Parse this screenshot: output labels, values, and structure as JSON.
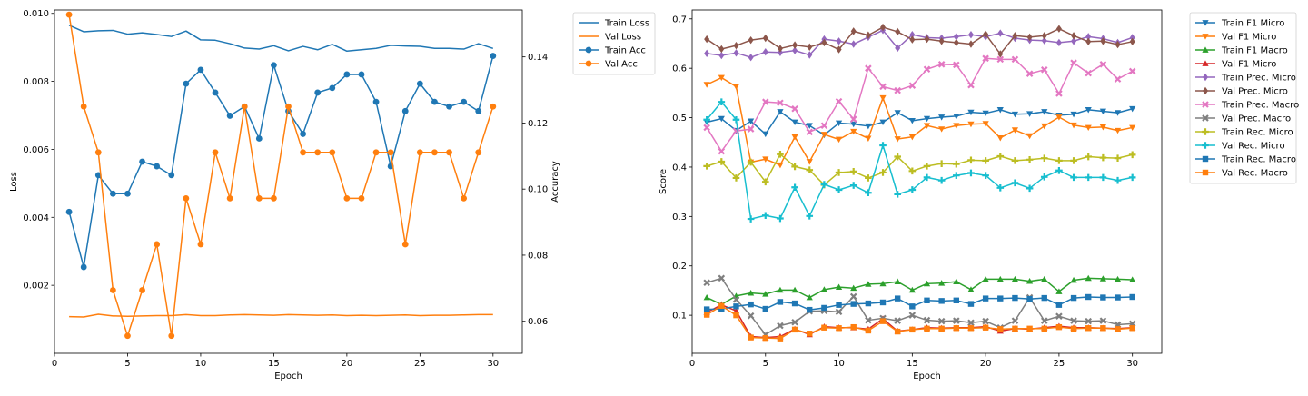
{
  "chart_data": [
    {
      "type": "line",
      "xlabel": "Epoch",
      "ylabel": "Loss",
      "y2label": "Accuracy",
      "x": [
        1,
        2,
        3,
        4,
        5,
        6,
        7,
        8,
        9,
        10,
        11,
        12,
        13,
        14,
        15,
        16,
        17,
        18,
        19,
        20,
        21,
        22,
        23,
        24,
        25,
        26,
        27,
        28,
        29,
        30
      ],
      "xticks": [
        "0",
        "5",
        "10",
        "15",
        "20",
        "25",
        "30"
      ],
      "ylim": [
        0.0,
        0.0101
      ],
      "yticks": [
        "0.002",
        "0.004",
        "0.006",
        "0.008",
        "0.010"
      ],
      "y2lim": [
        0.0503,
        0.1542
      ],
      "y2ticks": [
        "0.06",
        "0.08",
        "0.10",
        "0.12",
        "0.14"
      ],
      "legend_position": "outside-top-right",
      "series": [
        {
          "name": "Train Loss",
          "axis": "left",
          "color": "#1f77b4",
          "marker": "none",
          "values": [
            0.00965,
            0.00946,
            0.00949,
            0.0095,
            0.00939,
            0.00943,
            0.00938,
            0.00932,
            0.00948,
            0.00922,
            0.00921,
            0.00911,
            0.00898,
            0.00895,
            0.00905,
            0.0089,
            0.00903,
            0.00893,
            0.00909,
            0.00889,
            0.00893,
            0.00897,
            0.00906,
            0.00904,
            0.00903,
            0.00897,
            0.00897,
            0.00895,
            0.00911,
            0.00897
          ]
        },
        {
          "name": "Val Loss",
          "axis": "left",
          "color": "#ff7f0e",
          "marker": "none",
          "values": [
            0.00108,
            0.00107,
            0.00115,
            0.0011,
            0.00109,
            0.0011,
            0.00111,
            0.00111,
            0.00114,
            0.00111,
            0.00111,
            0.00113,
            0.00114,
            0.00113,
            0.00112,
            0.00114,
            0.00113,
            0.00112,
            0.00113,
            0.00111,
            0.00112,
            0.00111,
            0.00112,
            0.00113,
            0.00111,
            0.00112,
            0.00112,
            0.00113,
            0.00114,
            0.00114
          ]
        },
        {
          "name": "Train Acc",
          "axis": "right",
          "color": "#1f77b4",
          "marker": "circle",
          "values": [
            0.0931,
            0.0764,
            0.1042,
            0.0986,
            0.0986,
            0.1083,
            0.1069,
            0.1042,
            0.1319,
            0.1361,
            0.1292,
            0.1222,
            0.125,
            0.1153,
            0.1375,
            0.1236,
            0.1167,
            0.1292,
            0.1306,
            0.1347,
            0.1347,
            0.1264,
            0.1069,
            0.1236,
            0.1319,
            0.1264,
            0.125,
            0.1264,
            0.1236,
            0.1403
          ]
        },
        {
          "name": "Val Acc",
          "axis": "right",
          "color": "#ff7f0e",
          "marker": "circle",
          "values": [
            0.1528,
            0.125,
            0.1111,
            0.0694,
            0.0556,
            0.0694,
            0.0833,
            0.0556,
            0.0972,
            0.0833,
            0.1111,
            0.0972,
            0.125,
            0.0972,
            0.0972,
            0.125,
            0.1111,
            0.1111,
            0.1111,
            0.0972,
            0.0972,
            0.1111,
            0.1111,
            0.0833,
            0.1111,
            0.1111,
            0.1111,
            0.0972,
            0.1111,
            0.125
          ]
        }
      ]
    },
    {
      "type": "line",
      "xlabel": "Epoch",
      "ylabel": "Score",
      "x": [
        1,
        2,
        3,
        4,
        5,
        6,
        7,
        8,
        9,
        10,
        11,
        12,
        13,
        14,
        15,
        16,
        17,
        18,
        19,
        20,
        21,
        22,
        23,
        24,
        25,
        26,
        27,
        28,
        29,
        30
      ],
      "xticks": [
        "0",
        "5",
        "10",
        "15",
        "20",
        "25",
        "30"
      ],
      "ylim": [
        0.023,
        0.718
      ],
      "yticks": [
        "0.1",
        "0.2",
        "0.3",
        "0.4",
        "0.5",
        "0.6",
        "0.7"
      ],
      "legend_position": "outside-top-right",
      "series": [
        {
          "name": "Train F1 Micro",
          "color": "#1f77b4",
          "marker": "tri-down",
          "values": [
            0.491,
            0.498,
            0.474,
            0.493,
            0.467,
            0.512,
            0.491,
            0.484,
            0.465,
            0.489,
            0.487,
            0.483,
            0.491,
            0.51,
            0.494,
            0.498,
            0.501,
            0.503,
            0.511,
            0.509,
            0.516,
            0.507,
            0.508,
            0.512,
            0.505,
            0.507,
            0.516,
            0.513,
            0.51,
            0.518
          ]
        },
        {
          "name": "Val F1 Micro",
          "color": "#ff7f0e",
          "marker": "tri-down",
          "values": [
            0.567,
            0.581,
            0.563,
            0.41,
            0.416,
            0.404,
            0.461,
            0.411,
            0.466,
            0.456,
            0.472,
            0.458,
            0.54,
            0.457,
            0.461,
            0.484,
            0.477,
            0.484,
            0.487,
            0.488,
            0.459,
            0.475,
            0.463,
            0.483,
            0.501,
            0.485,
            0.48,
            0.481,
            0.474,
            0.48
          ]
        },
        {
          "name": "Train F1 Macro",
          "color": "#2ca02c",
          "marker": "tri-up",
          "values": [
            0.136,
            0.122,
            0.139,
            0.145,
            0.143,
            0.151,
            0.151,
            0.136,
            0.152,
            0.157,
            0.155,
            0.163,
            0.164,
            0.168,
            0.151,
            0.164,
            0.165,
            0.168,
            0.152,
            0.173,
            0.173,
            0.173,
            0.169,
            0.173,
            0.148,
            0.171,
            0.175,
            0.174,
            0.173,
            0.172
          ]
        },
        {
          "name": "Val F1 Micro",
          "color": "#d62728",
          "marker": "tri-up",
          "values": [
            0.106,
            0.121,
            0.109,
            0.057,
            0.055,
            0.057,
            0.072,
            0.061,
            0.077,
            0.075,
            0.075,
            0.072,
            0.093,
            0.068,
            0.071,
            0.075,
            0.074,
            0.075,
            0.075,
            0.077,
            0.068,
            0.073,
            0.072,
            0.075,
            0.078,
            0.075,
            0.075,
            0.074,
            0.073,
            0.075
          ]
        },
        {
          "name": "Train Prec. Micro",
          "color": "#9467bd",
          "marker": "diamond",
          "values": [
            0.63,
            0.626,
            0.631,
            0.622,
            0.633,
            0.632,
            0.636,
            0.627,
            0.659,
            0.655,
            0.649,
            0.663,
            0.677,
            0.641,
            0.668,
            0.662,
            0.661,
            0.664,
            0.668,
            0.664,
            0.671,
            0.661,
            0.657,
            0.656,
            0.652,
            0.655,
            0.664,
            0.66,
            0.652,
            0.662
          ]
        },
        {
          "name": "Val Prec. Micro",
          "color": "#8c564b",
          "marker": "diamond",
          "values": [
            0.659,
            0.639,
            0.646,
            0.657,
            0.661,
            0.64,
            0.647,
            0.643,
            0.652,
            0.638,
            0.675,
            0.667,
            0.683,
            0.674,
            0.658,
            0.659,
            0.655,
            0.652,
            0.649,
            0.669,
            0.629,
            0.666,
            0.663,
            0.666,
            0.68,
            0.666,
            0.654,
            0.655,
            0.648,
            0.654
          ]
        },
        {
          "name": "Train Prec. Macro",
          "color": "#e377c2",
          "marker": "x",
          "values": [
            0.48,
            0.432,
            0.473,
            0.477,
            0.532,
            0.53,
            0.518,
            0.471,
            0.484,
            0.533,
            0.497,
            0.6,
            0.563,
            0.555,
            0.565,
            0.598,
            0.608,
            0.607,
            0.566,
            0.62,
            0.618,
            0.618,
            0.589,
            0.597,
            0.549,
            0.611,
            0.59,
            0.608,
            0.578,
            0.594
          ]
        },
        {
          "name": "Val Prec. Macro",
          "color": "#7f7f7f",
          "marker": "x",
          "values": [
            0.166,
            0.175,
            0.132,
            0.099,
            0.061,
            0.079,
            0.086,
            0.108,
            0.109,
            0.107,
            0.138,
            0.09,
            0.094,
            0.089,
            0.1,
            0.09,
            0.088,
            0.089,
            0.085,
            0.088,
            0.075,
            0.089,
            0.136,
            0.089,
            0.098,
            0.089,
            0.088,
            0.089,
            0.081,
            0.083
          ]
        },
        {
          "name": "Train Rec. Micro",
          "color": "#bcbd22",
          "marker": "plus",
          "values": [
            0.402,
            0.411,
            0.378,
            0.41,
            0.37,
            0.426,
            0.401,
            0.394,
            0.364,
            0.389,
            0.391,
            0.378,
            0.389,
            0.421,
            0.392,
            0.402,
            0.407,
            0.406,
            0.414,
            0.413,
            0.422,
            0.413,
            0.415,
            0.418,
            0.413,
            0.413,
            0.421,
            0.419,
            0.418,
            0.425
          ]
        },
        {
          "name": "Val Rec. Micro",
          "color": "#17becf",
          "marker": "plus",
          "values": [
            0.496,
            0.532,
            0.496,
            0.295,
            0.302,
            0.296,
            0.359,
            0.301,
            0.365,
            0.354,
            0.363,
            0.348,
            0.444,
            0.345,
            0.354,
            0.379,
            0.373,
            0.383,
            0.388,
            0.383,
            0.358,
            0.368,
            0.357,
            0.38,
            0.393,
            0.379,
            0.379,
            0.379,
            0.373,
            0.379
          ]
        },
        {
          "name": "Train Rec. Macro",
          "color": "#1f77b4",
          "marker": "square",
          "values": [
            0.112,
            0.113,
            0.118,
            0.122,
            0.113,
            0.127,
            0.124,
            0.111,
            0.115,
            0.121,
            0.123,
            0.124,
            0.126,
            0.134,
            0.118,
            0.13,
            0.129,
            0.13,
            0.123,
            0.134,
            0.134,
            0.135,
            0.133,
            0.135,
            0.121,
            0.135,
            0.137,
            0.136,
            0.136,
            0.137
          ]
        },
        {
          "name": "Val Rec. Macro",
          "color": "#ff7f0e",
          "marker": "square",
          "values": [
            0.101,
            0.119,
            0.1,
            0.055,
            0.054,
            0.053,
            0.071,
            0.063,
            0.075,
            0.074,
            0.076,
            0.069,
            0.088,
            0.067,
            0.071,
            0.073,
            0.073,
            0.074,
            0.074,
            0.075,
            0.072,
            0.073,
            0.073,
            0.073,
            0.076,
            0.073,
            0.074,
            0.074,
            0.072,
            0.074
          ]
        }
      ]
    }
  ]
}
